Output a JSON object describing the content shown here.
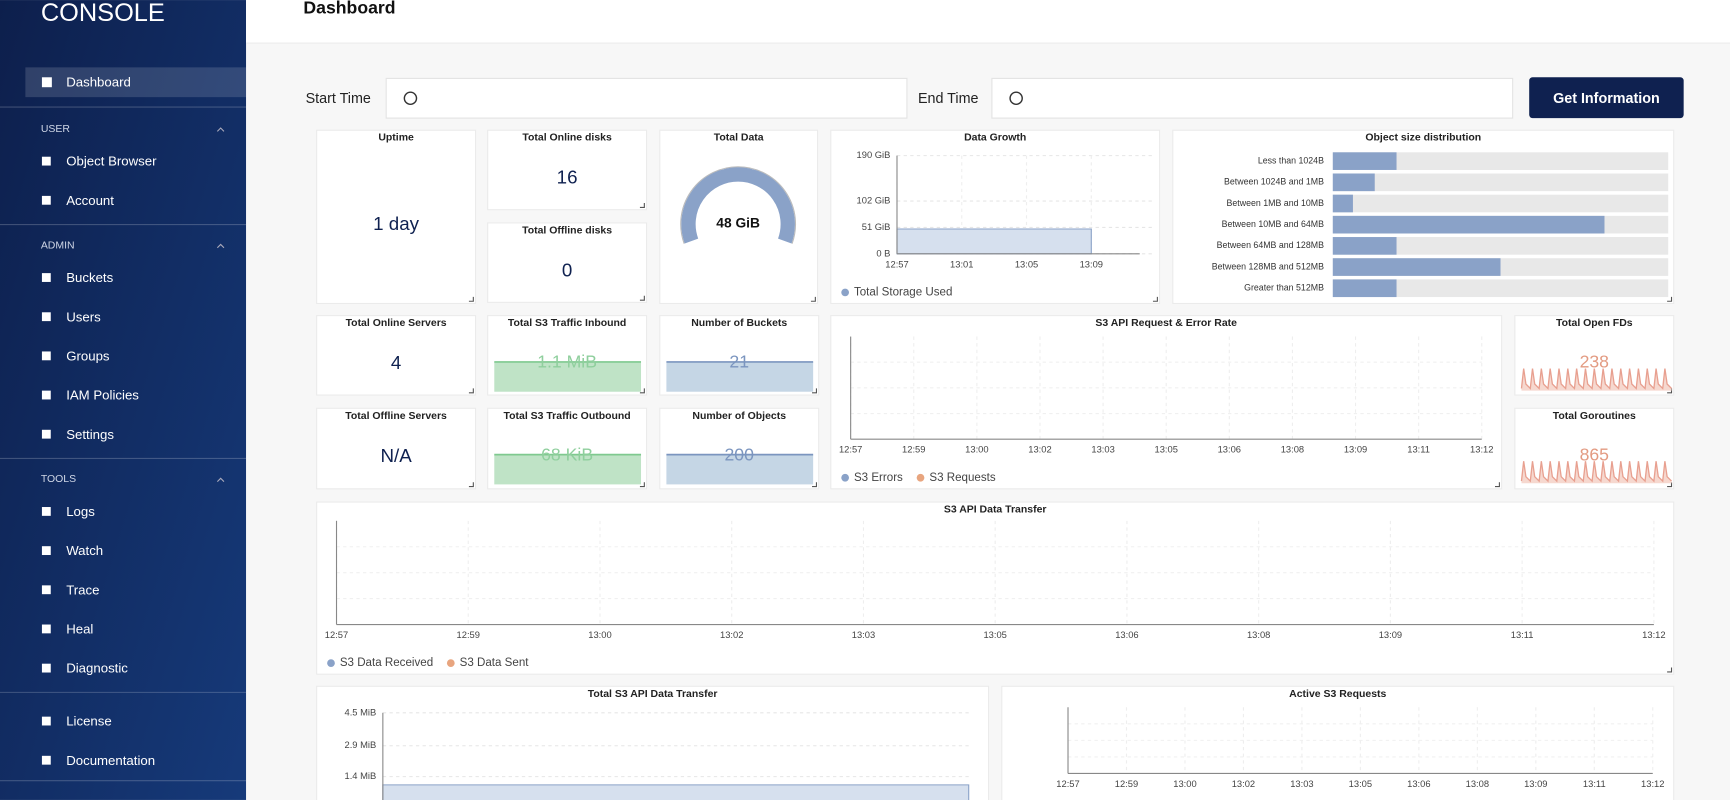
{
  "sidebar": {
    "logo": "CONSOLE",
    "active": "Dashboard",
    "sections": [
      {
        "title": "USER",
        "items": [
          "Object Browser",
          "Account"
        ]
      },
      {
        "title": "ADMIN",
        "items": [
          "Buckets",
          "Users",
          "Groups",
          "IAM Policies",
          "Settings"
        ]
      },
      {
        "title": "TOOLS",
        "items": [
          "Logs",
          "Watch",
          "Trace",
          "Heal",
          "Diagnostic"
        ]
      }
    ],
    "footer": [
      "License",
      "Documentation"
    ]
  },
  "header": {
    "title": "Dashboard"
  },
  "filters": {
    "start_label": "Start Time",
    "end_label": "End Time",
    "button": "Get Information"
  },
  "stats": [
    {
      "title": "Uptime",
      "value": "1 day"
    },
    {
      "title": "Total Online disks",
      "value": 16
    },
    {
      "title": "Total Offline disks",
      "value": 0
    },
    {
      "title": "Total Online Servers",
      "value": 4
    },
    {
      "title": "Total Offline Servers",
      "value": "N/A"
    }
  ],
  "total_data": {
    "title": "Total Data",
    "value": "48 GiB"
  },
  "sparks": [
    {
      "title": "Total S3 Traffic Inbound",
      "value": "1.1 MiB"
    },
    {
      "title": "Number of Buckets",
      "value": 21
    },
    {
      "title": "Total S3 Traffic Outbound",
      "value": "68 KiB"
    },
    {
      "title": "Number of Objects",
      "value": 200
    },
    {
      "title": "Total Open FDs",
      "value": 238
    },
    {
      "title": "Total Goroutines",
      "value": 865
    }
  ],
  "data_growth": {
    "title": "Data Growth",
    "x": [
      "12:57",
      "13:01",
      "13:05",
      "13:09"
    ],
    "values": [
      48,
      48,
      48,
      48
    ],
    "color": "#8aa2c8",
    "ylim": [
      0,
      190
    ],
    "yticks": [
      {
        "value": 190,
        "label": "190 GiB"
      },
      {
        "value": 102,
        "label": "102 GiB"
      },
      {
        "value": 51,
        "label": "51 GiB"
      },
      {
        "value": 0,
        "label": "0 B"
      }
    ],
    "legend": "Total Storage Used"
  },
  "object_size": {
    "title": "Object size distribution",
    "categories": [
      "Less than 1024B",
      "Between 1024B and 1MB",
      "Between 1MB and 10MB",
      "Between 10MB and 64MB",
      "Between 64MB and 128MB",
      "Between 128MB and 512MB",
      "Greater than 512MB"
    ],
    "values": [
      19,
      12.5,
      6,
      81,
      19,
      50,
      19
    ],
    "xlim": [
      0,
      100
    ],
    "color": "#8aa2c8"
  },
  "request_rate": {
    "title": "S3 API Request & Error Rate",
    "x": [
      "12:57",
      "12:59",
      "13:00",
      "13:02",
      "13:03",
      "13:05",
      "13:06",
      "13:08",
      "13:09",
      "13:11",
      "13:12"
    ],
    "series": [
      {
        "name": "S3 Errors",
        "color": "#8aa2c8"
      },
      {
        "name": "S3 Requests",
        "color": "#e8a57f"
      }
    ]
  },
  "data_transfer": {
    "title": "S3 API Data Transfer",
    "x": [
      "12:57",
      "12:59",
      "13:00",
      "13:02",
      "13:03",
      "13:05",
      "13:06",
      "13:08",
      "13:09",
      "13:11",
      "13:12"
    ],
    "series": [
      {
        "name": "S3 Data Received",
        "color": "#8aa2c8"
      },
      {
        "name": "S3 Data Sent",
        "color": "#e8a57f"
      }
    ]
  },
  "total_transfer": {
    "title": "Total S3 API Data Transfer",
    "values": [
      1,
      1
    ],
    "color": "#8aa2c8",
    "ylim": [
      0,
      4.5
    ],
    "yticks": [
      {
        "value": 4.5,
        "label": "4.5 MiB"
      },
      {
        "value": 2.9,
        "label": "2.9 MiB"
      },
      {
        "value": 1.4,
        "label": "1.4 MiB"
      }
    ]
  },
  "active_requests": {
    "title": "Active S3 Requests",
    "x": [
      "12:57",
      "12:59",
      "13:00",
      "13:02",
      "13:03",
      "13:05",
      "13:06",
      "13:08",
      "13:09",
      "13:11",
      "13:12"
    ]
  }
}
